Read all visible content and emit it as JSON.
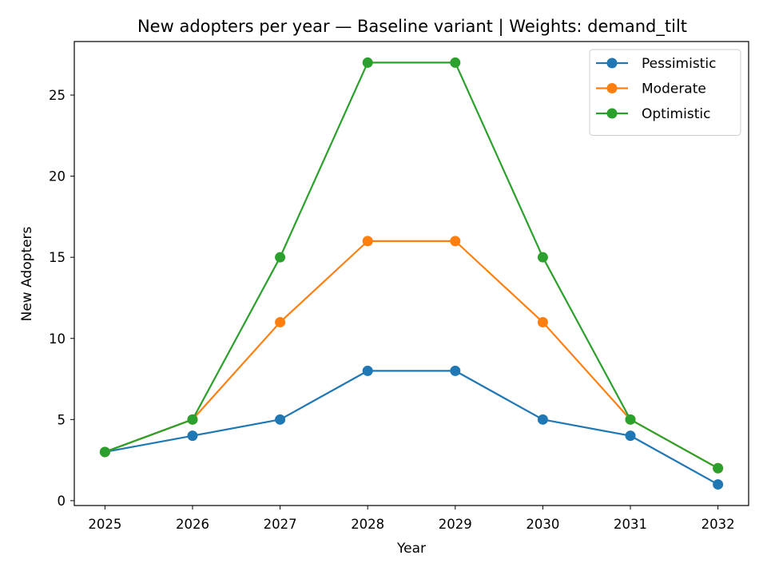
{
  "chart_data": {
    "type": "line",
    "title": "New adopters per year — Baseline variant | Weights: demand_tilt",
    "xlabel": "Year",
    "ylabel": "New Adopters",
    "x": [
      2025,
      2026,
      2027,
      2028,
      2029,
      2030,
      2031,
      2032
    ],
    "xlim": [
      2024.65,
      2032.35
    ],
    "ylim": [
      -0.3,
      28.3
    ],
    "yticks": [
      0,
      5,
      10,
      15,
      20,
      25
    ],
    "grid": false,
    "legend_position": "top-right",
    "marker": "circle",
    "series": [
      {
        "name": "Pessimistic",
        "color": "#1f77b4",
        "values": [
          3,
          4,
          5,
          8,
          8,
          5,
          4,
          1
        ]
      },
      {
        "name": "Moderate",
        "color": "#ff7f0e",
        "values": [
          3,
          5,
          11,
          16,
          16,
          11,
          5,
          2
        ]
      },
      {
        "name": "Optimistic",
        "color": "#2ca02c",
        "values": [
          3,
          5,
          15,
          27,
          27,
          15,
          5,
          2
        ]
      }
    ]
  }
}
